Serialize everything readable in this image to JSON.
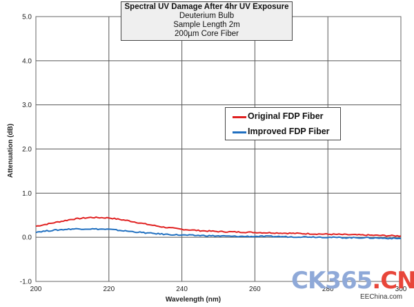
{
  "chart_data": {
    "type": "line",
    "title": "Spectral UV Damage After 4hr UV Exposure",
    "subtitle_lines": [
      "Deuterium Bulb",
      "Sample Length 2m",
      "200µm Core Fiber"
    ],
    "xlabel": "Wavelength (nm)",
    "ylabel": "Attenuation  (dB)",
    "xlim": [
      200,
      300
    ],
    "ylim": [
      -1.0,
      5.0
    ],
    "x_ticks": [
      "200",
      "220",
      "240",
      "260",
      "280",
      "300"
    ],
    "y_ticks": [
      "-1.0",
      "0.0",
      "1.0",
      "2.0",
      "3.0",
      "4.0",
      "5.0"
    ],
    "grid": true,
    "legend_position": "right-middle",
    "series": [
      {
        "name": "Original FDP Fiber",
        "color": "#e02020",
        "x": [
          200,
          205,
          210,
          215,
          220,
          225,
          230,
          235,
          240,
          245,
          250,
          255,
          260,
          265,
          270,
          275,
          280,
          285,
          290,
          295,
          300
        ],
        "y": [
          0.25,
          0.33,
          0.41,
          0.45,
          0.44,
          0.38,
          0.3,
          0.23,
          0.18,
          0.15,
          0.13,
          0.12,
          0.11,
          0.1,
          0.09,
          0.08,
          0.07,
          0.06,
          0.05,
          0.04,
          0.03
        ]
      },
      {
        "name": "Improved FDP Fiber",
        "color": "#1f6fc0",
        "x": [
          200,
          205,
          210,
          215,
          220,
          225,
          230,
          235,
          240,
          245,
          250,
          255,
          260,
          265,
          270,
          275,
          280,
          285,
          290,
          295,
          300
        ],
        "y": [
          0.12,
          0.16,
          0.19,
          0.19,
          0.18,
          0.14,
          0.1,
          0.07,
          0.05,
          0.04,
          0.03,
          0.02,
          0.02,
          0.02,
          0.01,
          0.01,
          0.0,
          -0.01,
          -0.01,
          -0.02,
          -0.03
        ]
      }
    ]
  },
  "watermark": {
    "part_a": "CK365",
    "part_b": ".CN",
    "sub": "EEChina.com"
  }
}
